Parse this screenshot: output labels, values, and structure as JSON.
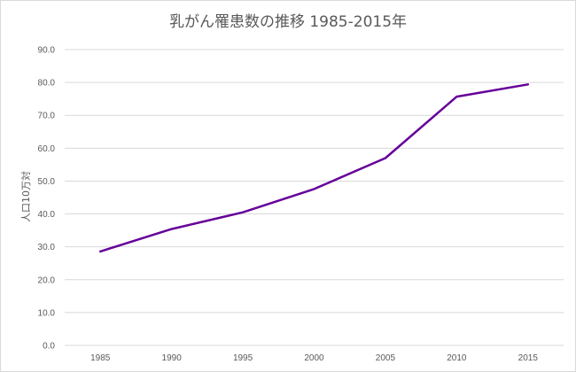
{
  "chart_data": {
    "type": "line",
    "title": "乳がん罹患数の推移 1985-2015年",
    "xlabel": "",
    "ylabel": "人口10万対",
    "categories": [
      "1985",
      "1990",
      "1995",
      "2000",
      "2005",
      "2010",
      "2015"
    ],
    "series": [
      {
        "values": [
          28.6,
          35.4,
          40.5,
          47.6,
          57.0,
          75.7,
          79.4
        ],
        "color": "#660099"
      }
    ],
    "ylim": [
      0,
      90
    ],
    "yticks": [
      "0.0",
      "10.0",
      "20.0",
      "30.0",
      "40.0",
      "50.0",
      "60.0",
      "70.0",
      "80.0",
      "90.0"
    ],
    "grid": true,
    "legend": "none"
  }
}
